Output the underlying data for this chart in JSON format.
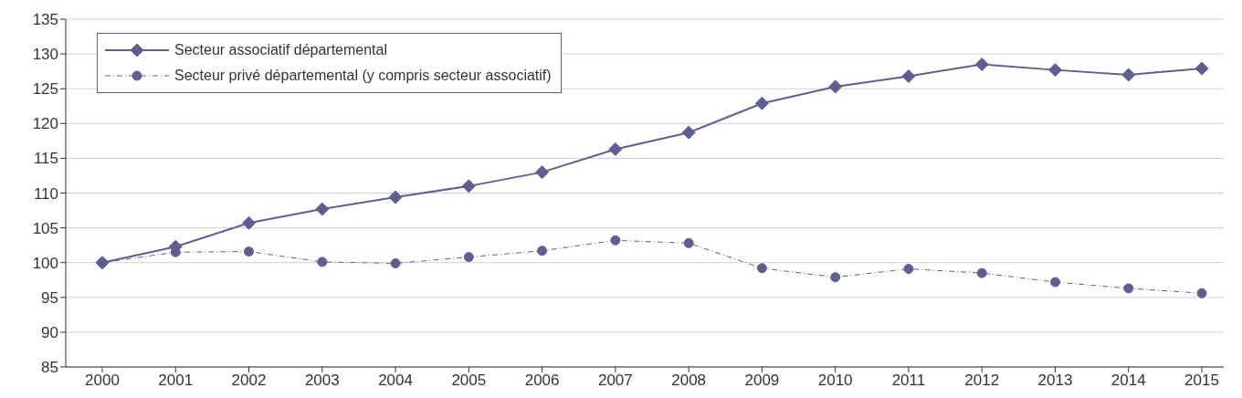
{
  "chart_data": {
    "type": "line",
    "categories": [
      "2000",
      "2001",
      "2002",
      "2003",
      "2004",
      "2005",
      "2006",
      "2007",
      "2008",
      "2009",
      "2010",
      "2011",
      "2012",
      "2013",
      "2014",
      "2015"
    ],
    "series": [
      {
        "name": "Secteur associatif départemental",
        "color": "#5f5f8f",
        "marker": "diamond",
        "line_style": "solid",
        "values": [
          100,
          102.3,
          105.7,
          107.7,
          109.4,
          111.0,
          113.0,
          116.3,
          118.7,
          122.9,
          125.3,
          126.8,
          128.5,
          127.7,
          127.0,
          127.9
        ]
      },
      {
        "name": "Secteur privé départemental (y compris secteur associatif)",
        "color": "#5f5f8f",
        "marker": "circle",
        "line_style": "dashed",
        "values": [
          100,
          101.5,
          101.6,
          100.1,
          99.9,
          100.8,
          101.7,
          103.2,
          102.8,
          99.2,
          97.9,
          99.1,
          98.5,
          97.2,
          96.3,
          95.6
        ]
      }
    ],
    "ylim": [
      85,
      135
    ],
    "yticks": [
      85,
      90,
      95,
      100,
      105,
      110,
      115,
      120,
      125,
      130,
      135
    ],
    "grid": "y",
    "legend": "top left"
  }
}
